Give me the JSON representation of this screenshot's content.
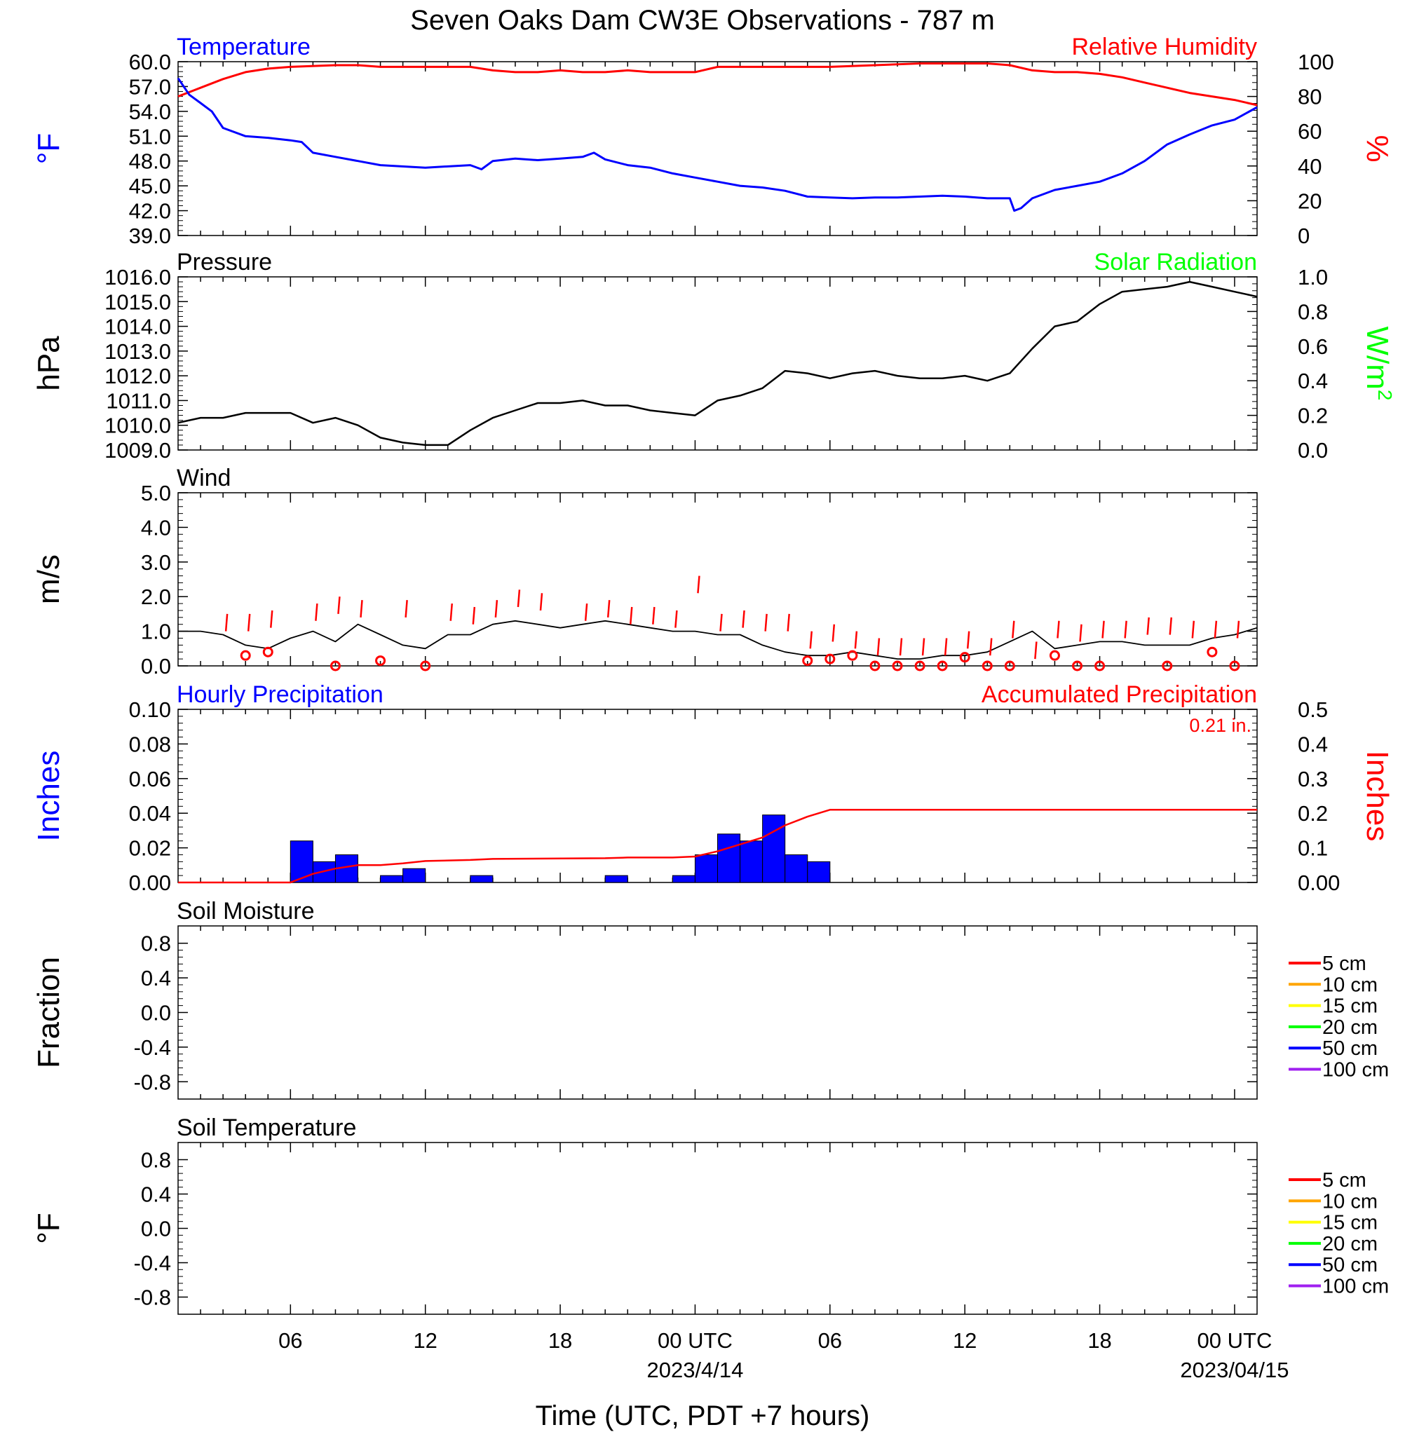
{
  "title": "Seven Oaks Dam CW3E Observations - 787 m",
  "xlabel": "Time (UTC, PDT +7 hours)",
  "x_axis": {
    "start_hour": 1,
    "end_hour": 49,
    "ticks": [
      {
        "hour": 6,
        "label": "06"
      },
      {
        "hour": 12,
        "label": "12"
      },
      {
        "hour": 18,
        "label": "18"
      },
      {
        "hour": 24,
        "label": "00 UTC",
        "sublabel": "2023/4/14"
      },
      {
        "hour": 30,
        "label": "06"
      },
      {
        "hour": 36,
        "label": "12"
      },
      {
        "hour": 42,
        "label": "18"
      },
      {
        "hour": 48,
        "label": "00 UTC",
        "sublabel": "2023/04/15"
      }
    ]
  },
  "colors": {
    "temperature": "#0000ff",
    "humidity": "#ff0000",
    "pressure": "#000000",
    "solar": "#00ff00",
    "wind": "#000000",
    "gust": "#ff0000",
    "hourly_precip": "#0000ff",
    "accum_precip": "#ff0000"
  },
  "chart_data": [
    {
      "type": "line",
      "panel": "temperature-humidity",
      "left_title": "Temperature",
      "right_title": "Relative Humidity",
      "ylabel": "°F",
      "ylabel_right": "%",
      "ylim": [
        39,
        60
      ],
      "ylim_right": [
        0,
        100
      ],
      "yticks": [
        "39.0",
        "42.0",
        "45.0",
        "48.0",
        "51.0",
        "54.0",
        "57.0",
        "60.0"
      ],
      "yticks_right": [
        "0",
        "20",
        "40",
        "60",
        "80",
        "100"
      ],
      "series": [
        {
          "name": "Temperature",
          "x": [
            1,
            1.5,
            2,
            2.5,
            3,
            4,
            5,
            6,
            6.5,
            7,
            8,
            9,
            10,
            12,
            14,
            14.5,
            15,
            16,
            17,
            18,
            19,
            19.5,
            20,
            21,
            22,
            23,
            24,
            25,
            26,
            27,
            28,
            29,
            30,
            31,
            32,
            33,
            34,
            35,
            36,
            37,
            38,
            38.2,
            38.5,
            39,
            40,
            41,
            42,
            43,
            44,
            45,
            46,
            47,
            48,
            49
          ],
          "y": [
            58,
            56,
            55,
            54,
            52,
            51,
            50.8,
            50.5,
            50.3,
            49,
            48.5,
            48,
            47.5,
            47.2,
            47.5,
            47,
            48,
            48.3,
            48.1,
            48.3,
            48.5,
            49,
            48.2,
            47.5,
            47.2,
            46.5,
            46,
            45.5,
            45,
            44.8,
            44.4,
            43.7,
            43.6,
            43.5,
            43.6,
            43.6,
            43.7,
            43.8,
            43.7,
            43.5,
            43.5,
            42,
            42.3,
            43.5,
            44.5,
            45,
            45.5,
            46.5,
            48,
            50,
            51.2,
            52.3,
            53,
            54.5
          ]
        },
        {
          "name": "Relative Humidity",
          "x": [
            1,
            2,
            3,
            4,
            5,
            6,
            8,
            9,
            10,
            14,
            15,
            16,
            17,
            18,
            19,
            20,
            21,
            22,
            23,
            24,
            25,
            26,
            28,
            30,
            32,
            34,
            36,
            37,
            38,
            39,
            40,
            41,
            42,
            43,
            44,
            45,
            46,
            47,
            48,
            49
          ],
          "y": [
            80,
            85,
            90,
            94,
            96,
            97,
            98,
            98,
            97,
            97,
            95,
            94,
            94,
            95,
            94,
            94,
            95,
            94,
            94,
            94,
            97,
            97,
            97,
            97,
            98,
            99,
            99,
            99,
            98,
            95,
            94,
            94,
            93,
            91,
            88,
            85,
            82,
            80,
            78,
            75
          ]
        }
      ]
    },
    {
      "type": "line",
      "panel": "pressure-solar",
      "left_title": "Pressure",
      "right_title": "Solar Radiation",
      "ylabel": "hPa",
      "ylabel_right": "W/m",
      "ylabel_right_sup": "2",
      "ylim": [
        1009,
        1016
      ],
      "ylim_right": [
        0,
        1
      ],
      "yticks": [
        "1009.0",
        "1010.0",
        "1011.0",
        "1012.0",
        "1013.0",
        "1014.0",
        "1015.0",
        "1016.0"
      ],
      "yticks_right": [
        "0.0",
        "0.2",
        "0.4",
        "0.6",
        "0.8",
        "1.0"
      ],
      "series": [
        {
          "name": "Pressure",
          "x": [
            1,
            2,
            3,
            4,
            5,
            6,
            7,
            8,
            9,
            10,
            11,
            12,
            13,
            14,
            15,
            16,
            17,
            18,
            19,
            20,
            21,
            22,
            23,
            24,
            25,
            26,
            27,
            28,
            29,
            30,
            31,
            32,
            33,
            34,
            35,
            36,
            37,
            38,
            39,
            40,
            41,
            42,
            43,
            44,
            45,
            46,
            47,
            48,
            49
          ],
          "y": [
            1010.1,
            1010.3,
            1010.3,
            1010.5,
            1010.5,
            1010.5,
            1010.1,
            1010.3,
            1010.0,
            1009.5,
            1009.3,
            1009.2,
            1009.2,
            1009.8,
            1010.3,
            1010.6,
            1010.9,
            1010.9,
            1011.0,
            1010.8,
            1010.8,
            1010.6,
            1010.5,
            1010.4,
            1011.0,
            1011.2,
            1011.5,
            1012.2,
            1012.1,
            1011.9,
            1012.1,
            1012.2,
            1012.0,
            1011.9,
            1011.9,
            1012.0,
            1011.8,
            1012.1,
            1013.1,
            1014.0,
            1014.2,
            1014.9,
            1015.4,
            1015.5,
            1015.6,
            1015.8,
            1015.6,
            1015.4,
            1015.2
          ]
        }
      ]
    },
    {
      "type": "line",
      "panel": "wind",
      "left_title": "Wind",
      "ylabel": "m/s",
      "ylim": [
        0,
        5
      ],
      "yticks": [
        "0.0",
        "1.0",
        "2.0",
        "3.0",
        "4.0",
        "5.0"
      ],
      "series": [
        {
          "name": "Wind",
          "x": [
            1,
            2,
            3,
            4,
            5,
            6,
            7,
            8,
            9,
            10,
            11,
            12,
            13,
            14,
            15,
            16,
            17,
            18,
            19,
            20,
            21,
            22,
            23,
            24,
            25,
            26,
            27,
            28,
            29,
            30,
            31,
            32,
            33,
            34,
            35,
            36,
            37,
            38,
            39,
            40,
            41,
            42,
            43,
            44,
            45,
            46,
            47,
            48,
            49
          ],
          "y": [
            1.0,
            1.0,
            0.9,
            0.6,
            0.5,
            0.8,
            1.0,
            0.7,
            1.2,
            0.9,
            0.6,
            0.5,
            0.9,
            0.9,
            1.2,
            1.3,
            1.2,
            1.1,
            1.2,
            1.3,
            1.2,
            1.1,
            1.0,
            1.0,
            0.9,
            0.9,
            0.6,
            0.4,
            0.3,
            0.3,
            0.4,
            0.3,
            0.2,
            0.2,
            0.3,
            0.3,
            0.4,
            0.7,
            1.0,
            0.5,
            0.6,
            0.7,
            0.7,
            0.6,
            0.6,
            0.6,
            0.8,
            0.9,
            1.1
          ]
        }
      ],
      "gusts": {
        "x": [
          3,
          4,
          5,
          7,
          8,
          9,
          11,
          13,
          14,
          15,
          16,
          17,
          19,
          20,
          21,
          22,
          23,
          24,
          25,
          26,
          27,
          28,
          29,
          30,
          31,
          32,
          33,
          34,
          35,
          36,
          37,
          38,
          39,
          40,
          41,
          42,
          43,
          44,
          45,
          46,
          47,
          48
        ],
        "y": [
          1.5,
          1.5,
          1.6,
          1.8,
          2.0,
          1.9,
          1.9,
          1.8,
          1.7,
          1.9,
          2.2,
          2.1,
          1.8,
          1.9,
          1.7,
          1.7,
          1.6,
          2.6,
          1.5,
          1.6,
          1.5,
          1.5,
          1.0,
          1.2,
          1.0,
          0.8,
          0.8,
          0.8,
          0.8,
          1.0,
          0.8,
          1.3,
          0.7,
          1.3,
          1.2,
          1.3,
          1.3,
          1.4,
          1.4,
          1.3,
          1.3,
          1.3
        ]
      },
      "calm_points": {
        "x": [
          4,
          5,
          8,
          10,
          12,
          29,
          30,
          31,
          32,
          33,
          34,
          35,
          36,
          37,
          38,
          40,
          41,
          42,
          45,
          47,
          48
        ],
        "y": [
          0.3,
          0.4,
          0.0,
          0.15,
          0.0,
          0.15,
          0.2,
          0.3,
          0.0,
          0.0,
          0.0,
          0.0,
          0.25,
          0.0,
          0.0,
          0.3,
          0.0,
          0.0,
          0.0,
          0.4,
          0.0
        ]
      }
    },
    {
      "type": "bar",
      "panel": "precipitation",
      "left_title": "Hourly Precipitation",
      "right_title": "Accumulated Precipitation",
      "total_label": "0.21 in.",
      "ylabel": "Inches",
      "ylabel_right": "Inches",
      "ylim": [
        0,
        0.1
      ],
      "ylim_right": [
        0,
        0.5
      ],
      "yticks": [
        "0.00",
        "0.02",
        "0.04",
        "0.06",
        "0.08",
        "0.10"
      ],
      "yticks_right": [
        "0.00",
        "0.1",
        "0.2",
        "0.3",
        "0.4",
        "0.5"
      ],
      "hourly": {
        "hour_start": [
          6,
          7,
          8,
          10,
          11,
          14,
          20,
          23,
          24,
          25,
          26,
          27,
          28,
          29
        ],
        "values": [
          0.024,
          0.012,
          0.016,
          0.004,
          0.008,
          0.004,
          0.004,
          0.004,
          0.016,
          0.028,
          0.024,
          0.039,
          0.016,
          0.012
        ]
      },
      "accumulated": {
        "x": [
          1,
          6,
          7,
          8,
          9,
          10,
          11,
          12,
          14,
          15,
          20,
          21,
          23,
          24,
          25,
          26,
          27,
          28,
          29,
          30,
          31,
          49
        ],
        "y": [
          0,
          0,
          0.025,
          0.04,
          0.05,
          0.05,
          0.055,
          0.062,
          0.065,
          0.068,
          0.07,
          0.072,
          0.072,
          0.075,
          0.09,
          0.11,
          0.13,
          0.165,
          0.19,
          0.21,
          0.21,
          0.21
        ]
      }
    },
    {
      "type": "line",
      "panel": "soil-moisture",
      "left_title": "Soil Moisture",
      "ylabel": "Fraction",
      "ylim": [
        -1,
        1
      ],
      "yticks": [
        "-0.8",
        "-0.4",
        "0.0",
        "0.4",
        "0.8"
      ],
      "legend": [
        {
          "name": "5 cm",
          "color": "#ff0000"
        },
        {
          "name": "10 cm",
          "color": "#ffa500"
        },
        {
          "name": "15 cm",
          "color": "#ffff00"
        },
        {
          "name": "20 cm",
          "color": "#00ff00"
        },
        {
          "name": "50 cm",
          "color": "#0000ff"
        },
        {
          "name": "100 cm",
          "color": "#a020f0"
        }
      ]
    },
    {
      "type": "line",
      "panel": "soil-temperature",
      "left_title": "Soil Temperature",
      "ylabel": "°F",
      "ylim": [
        -1,
        1
      ],
      "yticks": [
        "-0.8",
        "-0.4",
        "0.0",
        "0.4",
        "0.8"
      ],
      "legend": [
        {
          "name": "5 cm",
          "color": "#ff0000"
        },
        {
          "name": "10 cm",
          "color": "#ffa500"
        },
        {
          "name": "15 cm",
          "color": "#ffff00"
        },
        {
          "name": "20 cm",
          "color": "#00ff00"
        },
        {
          "name": "50 cm",
          "color": "#0000ff"
        },
        {
          "name": "100 cm",
          "color": "#a020f0"
        }
      ]
    }
  ]
}
